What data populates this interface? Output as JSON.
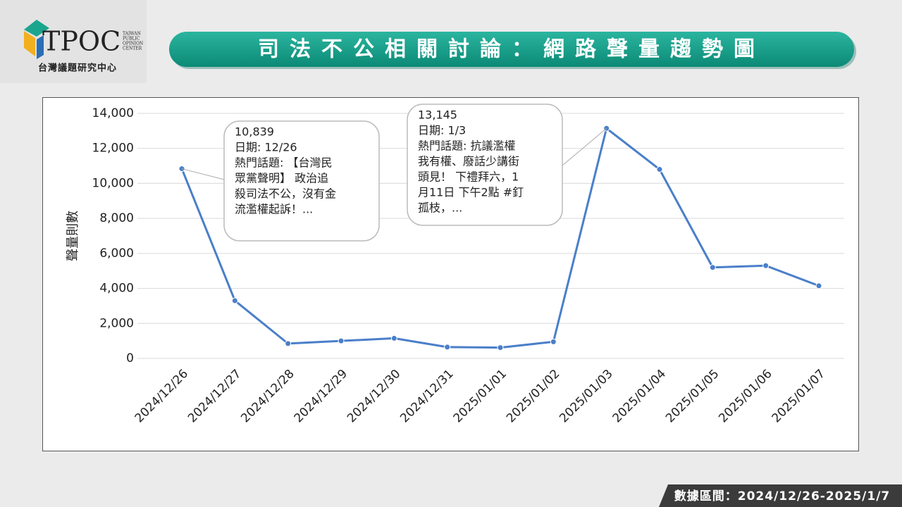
{
  "header": {
    "logo": "TPOC",
    "logo_tagline": [
      "TAIWAN",
      "PUBLIC",
      "OPINION",
      "CENTER"
    ],
    "organization": "台灣議題研究中心",
    "title": "司法不公相關討論：網路聲量趨勢圖"
  },
  "chart_data": {
    "type": "line",
    "y_label": "聲量則數",
    "categories": [
      "2024/12/26",
      "2024/12/27",
      "2024/12/28",
      "2024/12/29",
      "2024/12/30",
      "2024/12/31",
      "2025/01/01",
      "2025/01/02",
      "2025/01/03",
      "2025/01/04",
      "2025/01/05",
      "2025/01/06",
      "2025/01/07"
    ],
    "values": [
      10839,
      3300,
      850,
      1000,
      1150,
      650,
      620,
      950,
      13145,
      10800,
      5200,
      5300,
      4150
    ],
    "value_labels": [
      "10,839",
      null,
      null,
      null,
      null,
      null,
      null,
      null,
      "13,145",
      null,
      null,
      null,
      null
    ],
    "annotations": [
      {
        "lines": [
          "日期: 12/26",
          "熱門話題: 【台灣民",
          "眾黨聲明】 政治追",
          "殺司法不公，沒有金",
          "流濫權起訴！..."
        ]
      },
      {
        "lines": [
          "日期: 1/3",
          "熱門話題: 抗議濫權",
          "我有權、廢話少講街",
          "頭見！ 下禮拜六，1",
          "月11日 下午2點 #釘",
          "孤枝，..."
        ]
      }
    ],
    "color": "#4a7fc9",
    "ylim": [
      0,
      14000
    ],
    "yticks": [
      0,
      {
        "value": 2000,
        "label": "2,000"
      },
      {
        "value": 4000,
        "label": "4,000"
      },
      {
        "value": 6000,
        "label": "6,000"
      },
      {
        "value": 8000,
        "label": "8,000"
      },
      {
        "value": 10000,
        "label": "10,000"
      },
      {
        "value": 12000,
        "label": "12,000"
      },
      {
        "value": 14000,
        "label": "14,000"
      }
    ],
    "grid": true
  },
  "footer": {
    "date_range": "數據區間：2024/12/26-2025/1/7"
  }
}
